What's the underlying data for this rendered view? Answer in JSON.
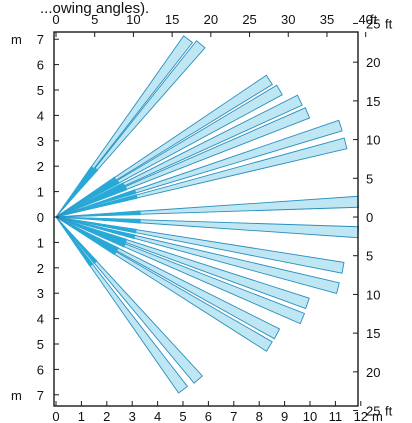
{
  "caption_fragment": "...owing angles).",
  "colors": {
    "beam_fill": "#bfe6f3",
    "beam_stroke": "#2a8fbf",
    "beam_core": "#29a9d8",
    "frame": "#1a1a1a"
  },
  "axes": {
    "top_ft": {
      "ticks": [
        "0",
        "5",
        "10",
        "15",
        "20",
        "25",
        "30",
        "35",
        "40"
      ],
      "unit": "ft"
    },
    "bottom_m": {
      "ticks": [
        "0",
        "1",
        "2",
        "3",
        "4",
        "5",
        "6",
        "7",
        "8",
        "9",
        "10",
        "11",
        "12"
      ],
      "unit": "m"
    },
    "left_m_top": {
      "ticks": [
        "7",
        "6",
        "5",
        "4",
        "3",
        "2",
        "1",
        "0"
      ],
      "unit": "m"
    },
    "left_m_bottom": {
      "ticks": [
        "1",
        "2",
        "3",
        "4",
        "5",
        "6",
        "7"
      ],
      "unit": "m"
    },
    "right_ft_top": {
      "ticks": [
        "25",
        "20",
        "15",
        "10",
        "5",
        "0"
      ],
      "unit": "ft"
    },
    "right_ft_bottom": {
      "ticks": [
        "5",
        "10",
        "15",
        "20",
        "25"
      ],
      "unit": "ft"
    }
  },
  "beams": [
    {
      "end_m": [
        5.2,
        7.0
      ]
    },
    {
      "end_m": [
        5.7,
        6.8
      ]
    },
    {
      "end_m": [
        8.4,
        5.4
      ]
    },
    {
      "end_m": [
        8.8,
        5.0
      ]
    },
    {
      "end_m": [
        9.6,
        4.6
      ]
    },
    {
      "end_m": [
        9.9,
        4.1
      ]
    },
    {
      "end_m": [
        11.2,
        3.6
      ]
    },
    {
      "end_m": [
        11.4,
        2.9
      ]
    },
    {
      "end_m": [
        11.9,
        0.6
      ]
    },
    {
      "end_m": [
        11.9,
        -0.6
      ]
    },
    {
      "end_m": [
        11.3,
        -2.0
      ]
    },
    {
      "end_m": [
        11.1,
        -2.8
      ]
    },
    {
      "end_m": [
        9.9,
        -3.4
      ]
    },
    {
      "end_m": [
        9.7,
        -4.0
      ]
    },
    {
      "end_m": [
        8.7,
        -4.6
      ]
    },
    {
      "end_m": [
        8.4,
        -5.1
      ]
    },
    {
      "end_m": [
        5.6,
        -6.4
      ]
    },
    {
      "end_m": [
        5.0,
        -6.8
      ]
    }
  ]
}
